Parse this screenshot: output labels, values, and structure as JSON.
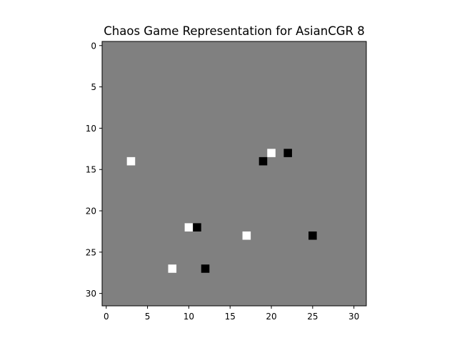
{
  "chart_data": {
    "type": "heatmap",
    "title": "Chaos Game Representation for AsianCGR 8",
    "xlabel": "",
    "ylabel": "",
    "grid_size": [
      32,
      32
    ],
    "x_ticks": [
      0,
      5,
      10,
      15,
      20,
      25,
      30
    ],
    "y_ticks": [
      0,
      5,
      10,
      15,
      20,
      25,
      30
    ],
    "xlim": [
      -0.5,
      31.5
    ],
    "ylim": [
      31.5,
      -0.5
    ],
    "y_axis_inverted": true,
    "colormap": "gray",
    "background_value": 0,
    "colors": {
      "background": "#808080",
      "white_cell": "#ffffff",
      "black_cell": "#000000"
    },
    "cells": [
      {
        "x": 3,
        "y": 14,
        "value": 1
      },
      {
        "x": 20,
        "y": 13,
        "value": 1
      },
      {
        "x": 22,
        "y": 13,
        "value": -1
      },
      {
        "x": 19,
        "y": 14,
        "value": -1
      },
      {
        "x": 10,
        "y": 22,
        "value": 1
      },
      {
        "x": 11,
        "y": 22,
        "value": -1
      },
      {
        "x": 17,
        "y": 23,
        "value": 1
      },
      {
        "x": 25,
        "y": 23,
        "value": -1
      },
      {
        "x": 8,
        "y": 27,
        "value": 1
      },
      {
        "x": 12,
        "y": 27,
        "value": -1
      }
    ]
  }
}
